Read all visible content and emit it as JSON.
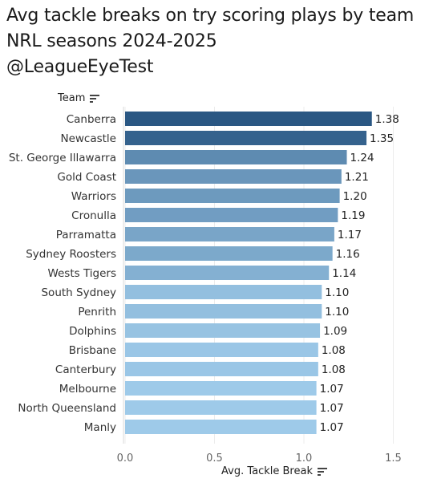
{
  "chart_data": {
    "type": "bar",
    "orientation": "horizontal",
    "title_lines": [
      "Avg tackle breaks on try scoring plays by team",
      "NRL seasons 2024-2025",
      "@LeagueEyeTest"
    ],
    "ylabel": "Team",
    "xlabel": "Avg. Tackle Break",
    "categories": [
      "Canberra",
      "Newcastle",
      "St. George Illawarra",
      "Gold Coast",
      "Warriors",
      "Cronulla",
      "Parramatta",
      "Sydney Roosters",
      "Wests Tigers",
      "South Sydney",
      "Penrith",
      "Dolphins",
      "Brisbane",
      "Canterbury",
      "Melbourne",
      "North Queensland",
      "Manly"
    ],
    "values": [
      1.38,
      1.35,
      1.24,
      1.21,
      1.2,
      1.19,
      1.17,
      1.16,
      1.14,
      1.1,
      1.1,
      1.09,
      1.08,
      1.08,
      1.07,
      1.07,
      1.07
    ],
    "value_labels": [
      "1.38",
      "1.35",
      "1.24",
      "1.21",
      "1.20",
      "1.19",
      "1.17",
      "1.16",
      "1.14",
      "1.10",
      "1.10",
      "1.09",
      "1.08",
      "1.08",
      "1.07",
      "1.07",
      "1.07"
    ],
    "xlim": [
      0,
      1.6
    ],
    "xticks": [
      0,
      0.5,
      1,
      1.5
    ],
    "xtick_labels": [
      "0.0",
      "0.5",
      "1.0",
      "1.5"
    ],
    "grid": true,
    "color_scale": {
      "low": "#9ecae9",
      "high": "#2a5783"
    },
    "sort": "descending"
  }
}
